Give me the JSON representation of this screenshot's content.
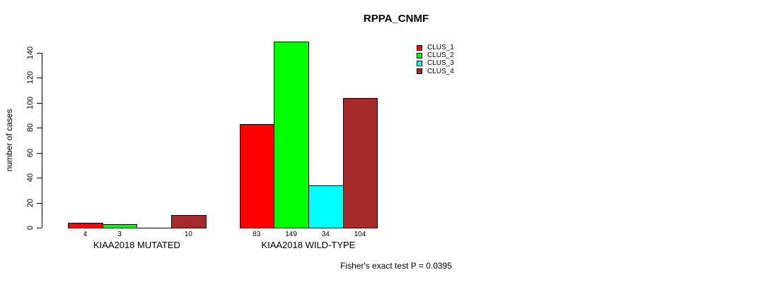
{
  "chart_data": {
    "type": "bar",
    "title": "RPPA_CNMF",
    "ylabel": "number of cases",
    "xlabel": "",
    "ylim": [
      0,
      140
    ],
    "yticks": [
      0,
      20,
      40,
      60,
      80,
      100,
      120,
      140
    ],
    "grid": false,
    "legend_position": "top-right",
    "categories": [
      "KIAA2018 MUTATED",
      "KIAA2018 WILD-TYPE"
    ],
    "series": [
      {
        "name": "CLUS_1",
        "color": "#ff0000",
        "values": [
          4,
          83
        ]
      },
      {
        "name": "CLUS_2",
        "color": "#00ff00",
        "values": [
          3,
          149
        ]
      },
      {
        "name": "CLUS_3",
        "color": "#00ffff",
        "values": [
          0,
          34
        ]
      },
      {
        "name": "CLUS_4",
        "color": "#a52a2a",
        "values": [
          10,
          104
        ]
      }
    ],
    "value_labels": [
      [
        "4",
        "3",
        "",
        "10"
      ],
      [
        "83",
        "149",
        "34",
        "104"
      ]
    ],
    "annotation": "Fisher's exact test P = 0.0395",
    "colors": {
      "axis": "#000000",
      "background": "#ffffff",
      "bar_border": "#000000"
    }
  }
}
